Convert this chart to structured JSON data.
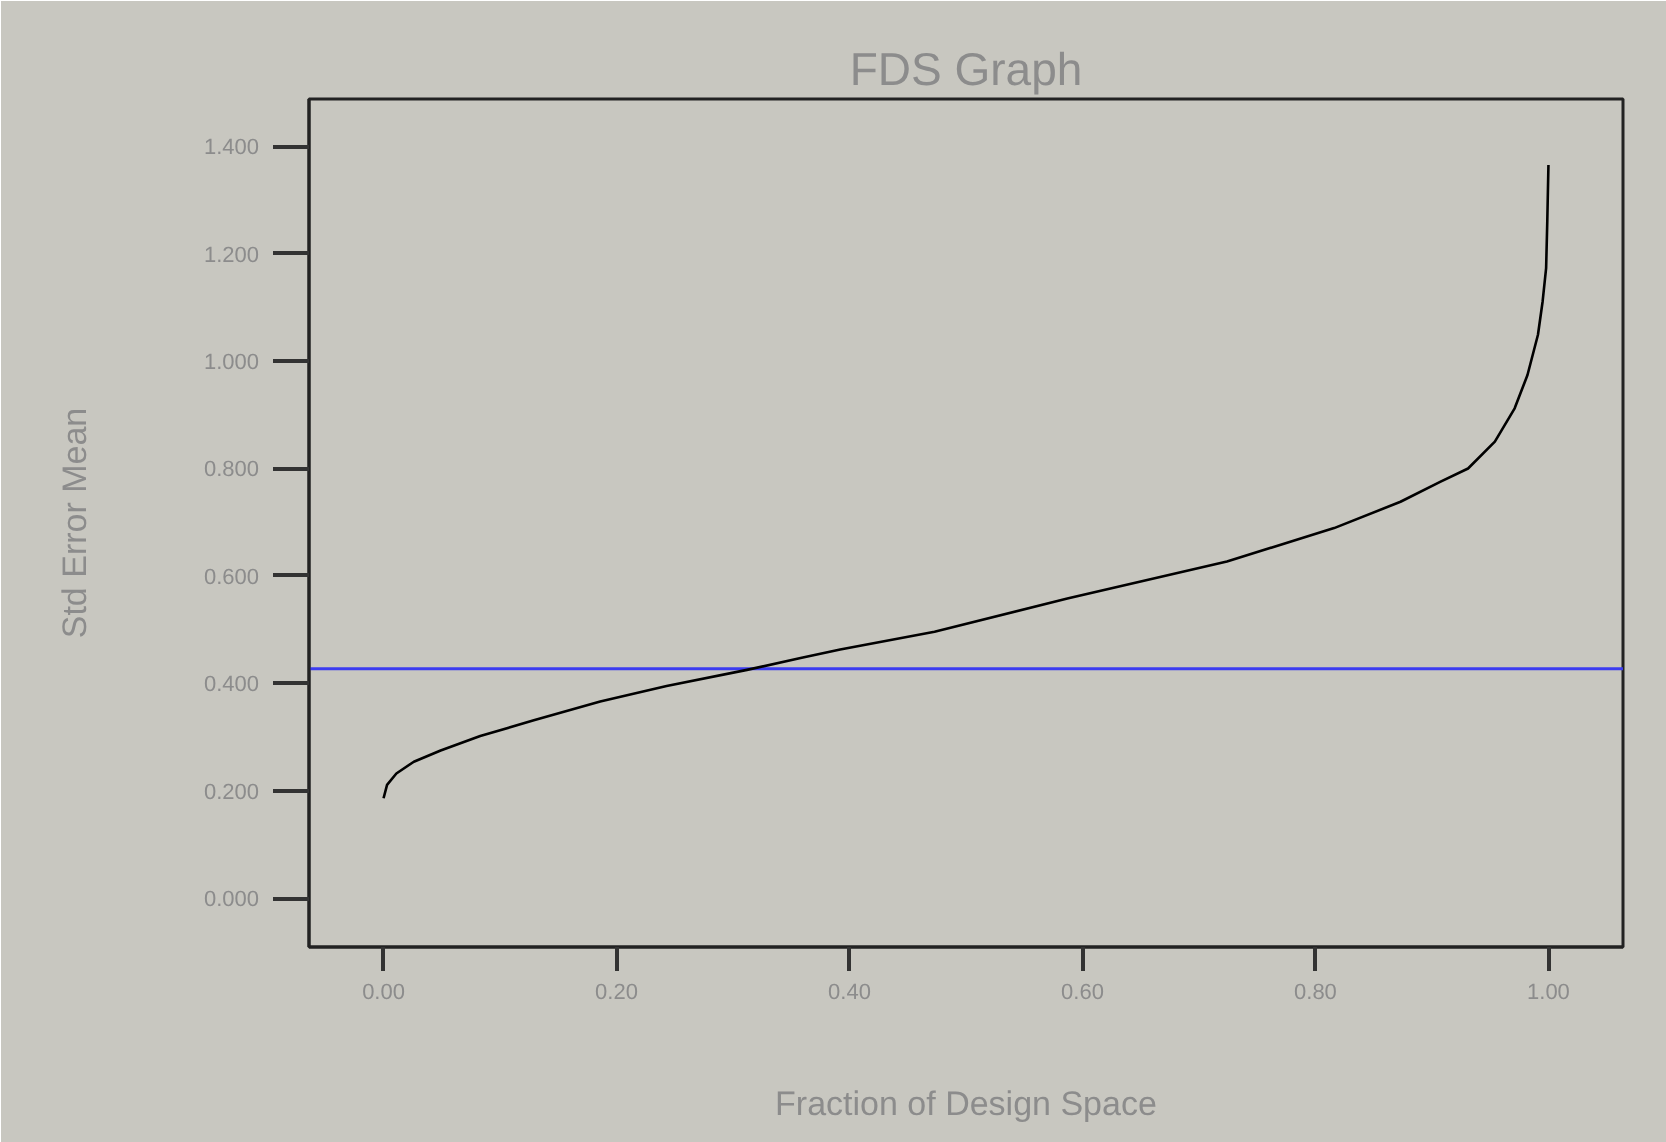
{
  "chart_data": {
    "type": "line",
    "title": "FDS Graph",
    "xlabel": "Fraction of Design Space",
    "ylabel": "Std Error Mean",
    "x": [
      0,
      0.003,
      0.011,
      0.026,
      0.049,
      0.083,
      0.129,
      0.186,
      0.243,
      0.312,
      0.358,
      0.392,
      0.473,
      0.587,
      0.724,
      0.816,
      0.873,
      0.907,
      0.931,
      0.954,
      0.971,
      0.982,
      0.991,
      0.995,
      0.998,
      0.999,
      1.0
    ],
    "series": [
      {
        "color": "#000000",
        "values": [
          0.186,
          0.211,
          0.232,
          0.254,
          0.275,
          0.302,
          0.331,
          0.366,
          0.395,
          0.425,
          0.447,
          0.463,
          0.496,
          0.558,
          0.627,
          0.689,
          0.738,
          0.775,
          0.8,
          0.85,
          0.912,
          0.974,
          1.049,
          1.111,
          1.173,
          1.26,
          1.365
        ]
      }
    ],
    "xlim": [
      -0.064,
      1.064
    ],
    "ylim": [
      -0.091,
      1.488
    ],
    "xticks": [
      {
        "value": 0,
        "label": "0.00"
      },
      {
        "value": 0.2,
        "label": "0.20"
      },
      {
        "value": 0.4,
        "label": "0.40"
      },
      {
        "value": 0.6,
        "label": "0.60"
      },
      {
        "value": 0.8,
        "label": "0.80"
      },
      {
        "value": 1.0,
        "label": "1.00"
      }
    ],
    "yticks": [
      {
        "value": 0,
        "label": "0.000"
      },
      {
        "value": 0.2,
        "label": "0.200"
      },
      {
        "value": 0.4,
        "label": "0.400"
      },
      {
        "value": 0.6,
        "label": "0.600"
      },
      {
        "value": 0.8,
        "label": "0.800"
      },
      {
        "value": 1.0,
        "label": "1.000"
      },
      {
        "value": 1.2,
        "label": "1.200"
      },
      {
        "value": 1.4,
        "label": "1.400"
      }
    ],
    "ref_lines": [
      {
        "axis": "y",
        "value": 0.427,
        "color": "#3c3cf0"
      }
    ],
    "grid": false,
    "marker": "none",
    "line_style": "solid"
  }
}
